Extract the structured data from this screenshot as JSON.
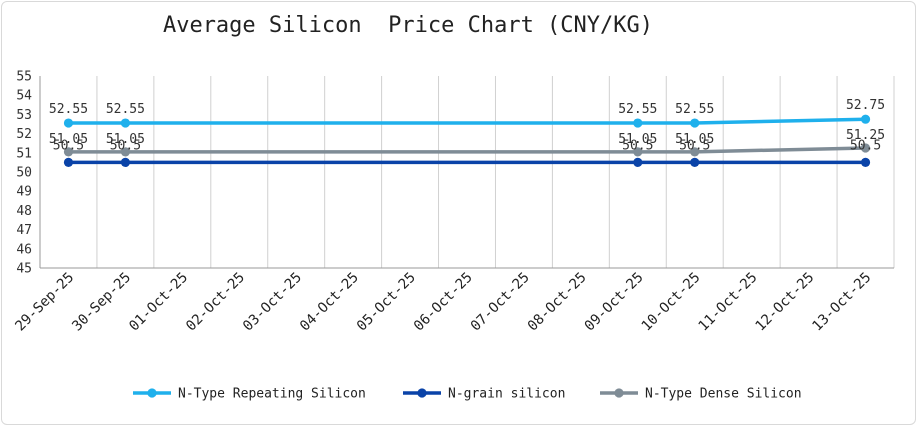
{
  "chart_data": {
    "type": "line",
    "title": "Average Silicon  Price Chart (CNY/KG)",
    "xlabel": "",
    "ylabel": "",
    "categories": [
      "29-Sep-25",
      "30-Sep-25",
      "01-Oct-25",
      "02-Oct-25",
      "03-Oct-25",
      "04-Oct-25",
      "05-Oct-25",
      "06-Oct-25",
      "07-Oct-25",
      "08-Oct-25",
      "09-Oct-25",
      "10-Oct-25",
      "11-Oct-25",
      "12-Oct-25",
      "13-Oct-25"
    ],
    "ylim": [
      45,
      55
    ],
    "yticks": [
      45,
      46,
      47,
      48,
      49,
      50,
      51,
      52,
      53,
      54,
      55
    ],
    "grid": "vertical",
    "legend_position": "bottom",
    "series": [
      {
        "name": "N-Type Repeating Silicon",
        "color": "#1fb0ec",
        "points": [
          {
            "x": "29-Sep-25",
            "y": 52.55,
            "label": "52.55"
          },
          {
            "x": "30-Sep-25",
            "y": 52.55,
            "label": "52.55"
          },
          {
            "x": "09-Oct-25",
            "y": 52.55,
            "label": "52.55"
          },
          {
            "x": "10-Oct-25",
            "y": 52.55,
            "label": "52.55"
          },
          {
            "x": "13-Oct-25",
            "y": 52.75,
            "label": "52.75"
          }
        ]
      },
      {
        "name": "N-grain silicon",
        "color": "#0a43a8",
        "points": [
          {
            "x": "29-Sep-25",
            "y": 50.5,
            "label": "50.5"
          },
          {
            "x": "30-Sep-25",
            "y": 50.5,
            "label": "50.5"
          },
          {
            "x": "09-Oct-25",
            "y": 50.5,
            "label": "50.5"
          },
          {
            "x": "10-Oct-25",
            "y": 50.5,
            "label": "50.5"
          },
          {
            "x": "13-Oct-25",
            "y": 50.5,
            "label": "50.5"
          }
        ]
      },
      {
        "name": "N-Type Dense Silicon",
        "color": "#7f8c96",
        "points": [
          {
            "x": "29-Sep-25",
            "y": 51.05,
            "label": "51.05"
          },
          {
            "x": "30-Sep-25",
            "y": 51.05,
            "label": "51.05"
          },
          {
            "x": "09-Oct-25",
            "y": 51.05,
            "label": "51.05"
          },
          {
            "x": "10-Oct-25",
            "y": 51.05,
            "label": "51.05"
          },
          {
            "x": "13-Oct-25",
            "y": 51.25,
            "label": "51.25"
          }
        ]
      }
    ]
  }
}
